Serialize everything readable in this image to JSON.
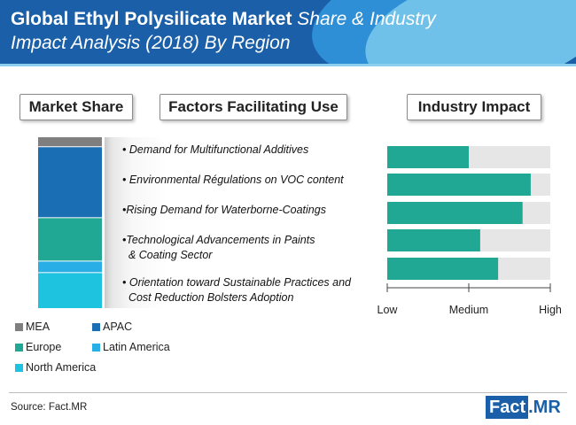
{
  "title": {
    "bold": "Global Ethyl Polysilicate Market",
    "italic_line1": "Share & Industry",
    "italic_line2": "Impact Analysis (2018) By Region"
  },
  "sections": {
    "market_share": "Market Share",
    "factors": "Factors Facilitating Use",
    "industry_impact": "Industry Impact"
  },
  "factors": [
    "• Demand for Multifunctional Additives",
    "• Environmental Régulations on VOC content",
    "•Rising Demand for Waterborne-Coatings",
    "•Technological Advancements in Paints\n  & Coating Sector",
    "• Orientation toward Sustainable Practices and\n  Cost Reduction Bolsters Adoption"
  ],
  "source": "Source: Fact.MR",
  "brand": {
    "part1": "Fact",
    "part2": ".MR"
  },
  "chart_data": [
    {
      "type": "bar",
      "subtype": "stacked-100",
      "title": "Market Share",
      "series": [
        {
          "name": "MEA",
          "value": 5.6,
          "color": "#7f7f7f"
        },
        {
          "name": "APAC",
          "value": 41.5,
          "color": "#1a6eb3"
        },
        {
          "name": "Europe",
          "value": 25.4,
          "color": "#21a895"
        },
        {
          "name": "Latin America",
          "value": 6.7,
          "color": "#2aaee6"
        },
        {
          "name": "North America",
          "value": 20.8,
          "color": "#1ec3e0"
        }
      ],
      "legend_order": [
        "MEA",
        "APAC",
        "Europe",
        "Latin America",
        "North America"
      ],
      "legend_placement": "bottom-left"
    },
    {
      "type": "bar",
      "orientation": "horizontal",
      "title": "Industry Impact",
      "categories": [
        "Demand for Multifunctional Additives",
        "Environmental Régulations on VOC content",
        "Rising Demand for Waterborne-Coatings",
        "Technological Advancements in Paints & Coating Sector",
        "Orientation toward Sustainable Practices and Cost Reduction Bolsters Adoption"
      ],
      "values": [
        0.5,
        0.88,
        0.83,
        0.57,
        0.68
      ],
      "scale_labels": [
        "Low",
        "Medium",
        "High"
      ],
      "bar_color": "#21a895",
      "track_color": "#e6e6e6"
    }
  ]
}
